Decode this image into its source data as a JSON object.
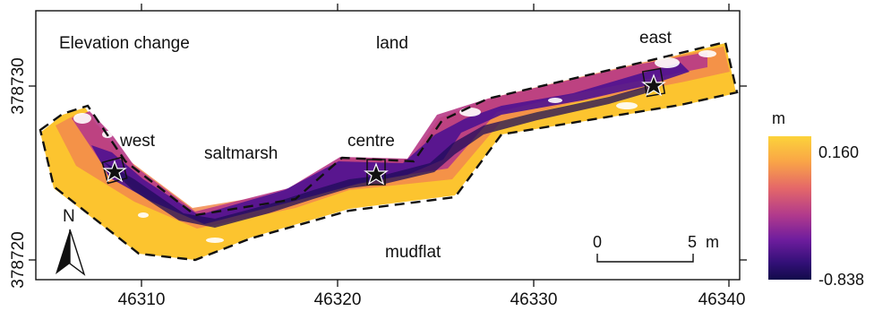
{
  "map": {
    "title": "Elevation change",
    "labels": {
      "land": "land",
      "saltmarsh": "saltmarsh",
      "mudflat": "mudflat"
    },
    "sites": {
      "west": "west",
      "centre": "centre",
      "east": "east"
    },
    "x_ticks": [
      "46310",
      "46320",
      "46330",
      "46340"
    ],
    "y_ticks": [
      "378730",
      "378720"
    ],
    "north_label": "N",
    "scalebar": {
      "start": "0",
      "end": "5",
      "unit": "m"
    }
  },
  "legend": {
    "unit": "m",
    "max_label": "0.160",
    "min_label": "-0.838",
    "max_value": 0.16,
    "min_value": -0.838,
    "colors": [
      "#fcd33a",
      "#f79a4a",
      "#e06a6a",
      "#b33b8c",
      "#6a1c9a",
      "#2a0a6e",
      "#120a4a"
    ]
  },
  "colors": {
    "frame": "#111111",
    "high": "#fcc82e",
    "mid_high": "#f3894d",
    "mid": "#c2437f",
    "low": "#5a128f",
    "lowest": "#1f0c5a"
  }
}
